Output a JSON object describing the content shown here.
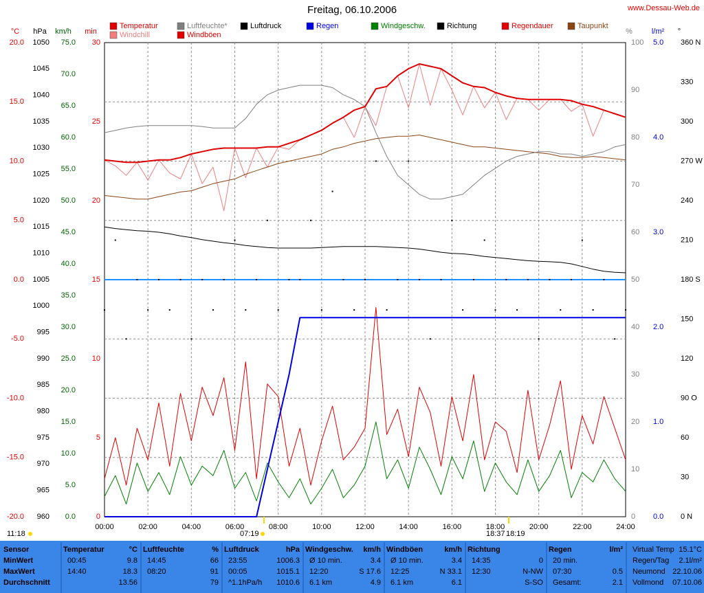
{
  "chart_data": {
    "type": "line",
    "title": "Freitag, 06.10.2006",
    "source": "www.Dessau-Web.de",
    "x": [
      0,
      0.5,
      1,
      1.5,
      2,
      2.5,
      3,
      3.5,
      4,
      4.5,
      5,
      5.5,
      6,
      6.5,
      7,
      7.5,
      8,
      8.5,
      9,
      9.5,
      10,
      10.5,
      11,
      11.5,
      12,
      12.5,
      13,
      13.5,
      14,
      14.5,
      15,
      15.5,
      16,
      16.5,
      17,
      17.5,
      18,
      18.5,
      19,
      19.5,
      20,
      20.5,
      21,
      21.5,
      22,
      22.5,
      23,
      23.5,
      24
    ],
    "xlim": [
      0,
      24
    ],
    "xticks": [
      {
        "value": 0,
        "label": "00:00"
      },
      {
        "value": 2,
        "label": "02:00"
      },
      {
        "value": 4,
        "label": "04:00"
      },
      {
        "value": 6,
        "label": "06:00"
      },
      {
        "value": 8,
        "label": "08:00"
      },
      {
        "value": 10,
        "label": "10:00"
      },
      {
        "value": 12,
        "label": "12:00"
      },
      {
        "value": 14,
        "label": "14:00"
      },
      {
        "value": 16,
        "label": "16:00"
      },
      {
        "value": 18,
        "label": "18:00"
      },
      {
        "value": 20,
        "label": "20:00"
      },
      {
        "value": 22,
        "label": "22:00"
      },
      {
        "value": 24,
        "label": "24:00"
      }
    ],
    "grid": true,
    "grid_axis": "temp",
    "grid_color": "#909090",
    "zero_line_color": "#1e90ff",
    "axes": [
      {
        "id": "temp",
        "label": "°C",
        "color": "#e00000",
        "lim": [
          -20,
          20
        ],
        "ticks": [
          {
            "value": 20,
            "label": "20.0"
          },
          {
            "value": 15,
            "label": "15.0"
          },
          {
            "value": 10,
            "label": "10.0"
          },
          {
            "value": 5,
            "label": "5.0"
          },
          {
            "value": 0,
            "label": "0.0"
          },
          {
            "value": -5,
            "label": "-5.0"
          },
          {
            "value": -10,
            "label": "-10.0"
          },
          {
            "value": -15,
            "label": "-15.0"
          },
          {
            "value": -20,
            "label": "-20.0"
          }
        ]
      },
      {
        "id": "hpa",
        "label": "hPa",
        "color": "#000000",
        "lim": [
          960,
          1050
        ],
        "ticks": [
          1050,
          1045,
          1040,
          1035,
          1030,
          1025,
          1020,
          1015,
          1010,
          1005,
          1000,
          995,
          990,
          985,
          980,
          975,
          970,
          965,
          960
        ]
      },
      {
        "id": "kmh",
        "label": "km/h",
        "color": "#006400",
        "lim": [
          0,
          75
        ],
        "ticks": [
          {
            "value": 75,
            "label": "75.0"
          },
          {
            "value": 70,
            "label": "70.0"
          },
          {
            "value": 65,
            "label": "65.0"
          },
          {
            "value": 60,
            "label": "60.0"
          },
          {
            "value": 55,
            "label": "55.0"
          },
          {
            "value": 50,
            "label": "50.0"
          },
          {
            "value": 45,
            "label": "45.0"
          },
          {
            "value": 40,
            "label": "40.0"
          },
          {
            "value": 35,
            "label": "35.0"
          },
          {
            "value": 30,
            "label": "30.0"
          },
          {
            "value": 25,
            "label": "25.0"
          },
          {
            "value": 20,
            "label": "20.0"
          },
          {
            "value": 15,
            "label": "15.0"
          },
          {
            "value": 10,
            "label": "10.0"
          },
          {
            "value": 5,
            "label": "5.0"
          },
          {
            "value": 0,
            "label": "0.0"
          }
        ]
      },
      {
        "id": "min",
        "label": "min",
        "color": "#e00000",
        "lim": [
          0,
          30
        ],
        "ticks": [
          30,
          25,
          20,
          15,
          10,
          5,
          0
        ]
      },
      {
        "id": "pct",
        "label": "%",
        "color": "#808080",
        "lim": [
          0,
          100
        ],
        "ticks": [
          100,
          90,
          80,
          70,
          60,
          50,
          40,
          30,
          20,
          10,
          0
        ]
      },
      {
        "id": "rain",
        "label": "l/m²",
        "color": "#0000e0",
        "lim": [
          0,
          5
        ],
        "ticks": [
          {
            "value": 5,
            "label": "5.0"
          },
          {
            "value": 4,
            "label": "4.0"
          },
          {
            "value": 3,
            "label": "3.0"
          },
          {
            "value": 2,
            "label": "2.0"
          },
          {
            "value": 1,
            "label": "1.0"
          },
          {
            "value": 0,
            "label": "0.0"
          }
        ]
      },
      {
        "id": "dir",
        "label": "°",
        "color": "#000000",
        "lim": [
          0,
          360
        ],
        "ticks": [
          {
            "value": 360,
            "label": "360 N"
          },
          330,
          300,
          {
            "value": 270,
            "label": "270 W"
          },
          240,
          210,
          {
            "value": 180,
            "label": "180 S"
          },
          150,
          120,
          {
            "value": 90,
            "label": "90 O"
          },
          60,
          30,
          {
            "value": 0,
            "label": "0 N"
          }
        ]
      }
    ],
    "series": [
      {
        "name": "Temperatur",
        "color": "#e00000",
        "axis": "temp",
        "line_width": 2,
        "values": [
          10.1,
          10.0,
          9.9,
          9.9,
          10.0,
          10.1,
          10.1,
          10.3,
          10.6,
          10.8,
          11.0,
          11.1,
          11.1,
          11.1,
          11.1,
          11.2,
          11.2,
          11.5,
          11.8,
          12.2,
          12.6,
          13.2,
          13.7,
          14.3,
          14.6,
          16.1,
          16.3,
          17.2,
          17.8,
          18.2,
          18.0,
          17.8,
          17.2,
          16.6,
          16.3,
          16.2,
          15.8,
          15.5,
          15.3,
          15.2,
          15.2,
          15.2,
          15.2,
          15.1,
          14.8,
          14.6,
          14.3,
          14.0,
          13.7
        ]
      },
      {
        "name": "Luftfeuchte*",
        "color": "#808080",
        "axis": "pct",
        "line_width": 1,
        "values": [
          81,
          81.5,
          82,
          82.3,
          82.5,
          82.5,
          82.5,
          82.5,
          82.5,
          82.3,
          82,
          82,
          82,
          84,
          87,
          89,
          90,
          90.5,
          91,
          91,
          91,
          90.5,
          89,
          88,
          86.5,
          81,
          76,
          72,
          70,
          68,
          67,
          67,
          67.5,
          68,
          70,
          72,
          73.5,
          75,
          76,
          76.5,
          77,
          77,
          76.5,
          76.5,
          76,
          76.5,
          77,
          78,
          78.5
        ]
      },
      {
        "name": "Luftdruck",
        "color": "#000000",
        "axis": "hpa",
        "line_width": 1,
        "values": [
          1015.0,
          1014.7,
          1014.5,
          1014.3,
          1014.2,
          1014.0,
          1013.7,
          1013.3,
          1013.0,
          1012.6,
          1012.3,
          1012.0,
          1011.8,
          1011.5,
          1011.3,
          1011.1,
          1011.0,
          1011.0,
          1011.0,
          1011.0,
          1011.1,
          1011.2,
          1011.3,
          1011.3,
          1011.3,
          1011.3,
          1011.2,
          1011.1,
          1011.0,
          1010.8,
          1010.5,
          1010.2,
          1010.0,
          1009.9,
          1009.7,
          1009.4,
          1009.2,
          1009.0,
          1008.8,
          1008.6,
          1008.5,
          1008.4,
          1008.3,
          1008.0,
          1007.5,
          1007.0,
          1006.6,
          1006.4,
          1006.3
        ]
      },
      {
        "name": "Regen",
        "color": "#0000e0",
        "axis": "rain",
        "line_width": 2,
        "values": [
          0,
          0,
          0,
          0,
          0,
          0,
          0,
          0,
          0,
          0,
          0,
          0,
          0,
          0,
          0,
          0.5,
          1.0,
          1.5,
          2.1,
          2.1,
          2.1,
          2.1,
          2.1,
          2.1,
          2.1,
          2.1,
          2.1,
          2.1,
          2.1,
          2.1,
          2.1,
          2.1,
          2.1,
          2.1,
          2.1,
          2.1,
          2.1,
          2.1,
          2.1,
          2.1,
          2.1,
          2.1,
          2.1,
          2.1,
          2.1,
          2.1,
          2.1,
          2.1,
          2.1
        ]
      },
      {
        "name": "Windgeschw.",
        "color": "#008000",
        "axis": "kmh",
        "line_width": 1,
        "values": [
          3.2,
          6.5,
          2.0,
          8.5,
          4.0,
          7.0,
          3.5,
          9.5,
          5.0,
          8.0,
          6.5,
          10.5,
          4.5,
          7.0,
          2.5,
          8.5,
          5.5,
          3.0,
          6.0,
          2.0,
          4.5,
          7.5,
          3.0,
          5.0,
          8.0,
          15.0,
          6.0,
          9.0,
          4.5,
          11.0,
          7.5,
          3.5,
          9.5,
          6.0,
          12.0,
          4.0,
          8.5,
          5.5,
          3.5,
          9.0,
          4.0,
          6.5,
          10.5,
          3.0,
          7.0,
          5.5,
          9.0,
          6.0,
          4.0
        ]
      },
      {
        "name": "Richtung",
        "color": "#000000",
        "axis": "dir",
        "style": "dots",
        "values": [
          157,
          210,
          135,
          180,
          157,
          180,
          157,
          180,
          135,
          180,
          157,
          180,
          210,
          157,
          180,
          225,
          157,
          180,
          180,
          225,
          157,
          247,
          180,
          157,
          180,
          270,
          157,
          180,
          270,
          180,
          135,
          180,
          225,
          157,
          180,
          210,
          157,
          180,
          157,
          180,
          135,
          180,
          157,
          180,
          210,
          157,
          180,
          135,
          157
        ]
      },
      {
        "name": "Regendauer",
        "color": "#e00000",
        "axis": "min"
      },
      {
        "name": "Taupunkt",
        "color": "#8b4513",
        "axis": "temp",
        "line_width": 1,
        "values": [
          7.1,
          7.0,
          6.9,
          6.8,
          6.8,
          7.0,
          7.2,
          7.4,
          7.5,
          7.8,
          8.1,
          8.3,
          8.5,
          8.9,
          9.2,
          9.5,
          9.8,
          10.0,
          10.2,
          10.4,
          10.6,
          11.0,
          11.2,
          11.5,
          11.7,
          11.9,
          12.0,
          12.1,
          12.1,
          12.2,
          12.0,
          11.8,
          11.6,
          11.4,
          11.2,
          11.2,
          11.1,
          11.0,
          10.9,
          10.8,
          10.7,
          10.6,
          10.4,
          10.3,
          10.3,
          10.4,
          10.3,
          10.2,
          10.1
        ]
      },
      {
        "name": "Windchill",
        "color": "#f08080",
        "axis": "temp",
        "line_width": 1,
        "values": [
          10.1,
          9.6,
          8.8,
          9.9,
          8.4,
          10.1,
          9.0,
          8.5,
          10.6,
          8.1,
          9.5,
          5.8,
          11.1,
          8.6,
          11.1,
          9.5,
          11.2,
          11.0,
          11.8,
          12.2,
          12.6,
          13.2,
          13.7,
          12.0,
          14.6,
          13.0,
          16.3,
          17.2,
          14.5,
          18.2,
          14.7,
          17.8,
          16.0,
          13.9,
          16.3,
          14.5,
          15.8,
          13.5,
          15.3,
          15.2,
          14.3,
          15.2,
          15.2,
          14.2,
          14.8,
          12.1,
          14.3,
          14.0,
          13.7
        ]
      },
      {
        "name": "Windböen",
        "color": "#e00000",
        "axis": "kmh",
        "line_width": 1,
        "values": [
          6.0,
          12.5,
          5.0,
          14.0,
          9.0,
          18.0,
          8.0,
          19.5,
          12.0,
          20.5,
          16.0,
          22.0,
          10.5,
          24.5,
          6.0,
          21.0,
          19.0,
          8.0,
          14.0,
          5.0,
          12.0,
          17.5,
          9.0,
          11.0,
          14.0,
          33.1,
          13.0,
          17.0,
          9.5,
          20.5,
          16.5,
          8.0,
          19.0,
          12.0,
          22.5,
          9.0,
          15.0,
          13.5,
          7.0,
          20.0,
          9.0,
          14.5,
          21.5,
          7.5,
          16.0,
          11.5,
          19.0,
          14.0,
          9.0
        ]
      }
    ]
  },
  "astro": [
    "11:18",
    "07:19",
    "18:37",
    "18:19"
  ],
  "stats": {
    "columns": [
      {
        "title": "Sensor"
      },
      {
        "title": "Temperatur",
        "unit": "°C"
      },
      {
        "title": "Luftfeuchte",
        "unit": "%"
      },
      {
        "title": "Luftdruck",
        "unit": "hPa"
      },
      {
        "title": "Windgeschw.",
        "unit": "km/h"
      },
      {
        "title": "Windböen",
        "unit": "km/h"
      },
      {
        "title": "Richtung"
      },
      {
        "title": "Regen",
        "unit": "l/m²"
      }
    ],
    "rows": [
      {
        "label": "MinWert",
        "cells": [
          {
            "note": "00:45",
            "value": "9.8"
          },
          {
            "note": "14:45",
            "value": "66"
          },
          {
            "note": "23:55",
            "value": "1006.3"
          },
          {
            "note": "Ø 10 min.",
            "value": "3.4"
          },
          {
            "note": "Ø 10 min.",
            "value": "3.4"
          },
          {
            "note": "14:35",
            "value": "0"
          },
          {
            "note": "20 min."
          }
        ]
      },
      {
        "label": "MaxWert",
        "cells": [
          {
            "note": "14:40",
            "value": "18.3"
          },
          {
            "note": "08:20",
            "value": "91"
          },
          {
            "note": "00:05",
            "value": "1015.1"
          },
          {
            "note": "12:20",
            "value": "S 17.6"
          },
          {
            "note": "12:25",
            "value": "N 33.1"
          },
          {
            "note": "12:30",
            "value": "N-NW"
          },
          {
            "note": "07:30",
            "value": "0.5"
          }
        ]
      },
      {
        "label": "Durchschnitt",
        "cells": [
          {
            "value": "13.56"
          },
          {
            "value": "79"
          },
          {
            "note": "^1.1hPa/h",
            "value": "1010.6"
          },
          {
            "note": "6.1 km",
            "value": "4.9"
          },
          {
            "note": "6.1 km",
            "value": "6.1"
          },
          {
            "value": "S-SO"
          },
          {
            "note": "Gesamt:",
            "value": "2.1"
          }
        ]
      }
    ]
  },
  "info": [
    {
      "label": "Virtual Temp",
      "value": "15.1°C"
    },
    {
      "label": "Regen/Tag",
      "value": "2.1l/m²"
    },
    {
      "label": "Neumond",
      "value": "22.10.06"
    },
    {
      "label": "Vollmond",
      "value": "07.10.06"
    }
  ]
}
